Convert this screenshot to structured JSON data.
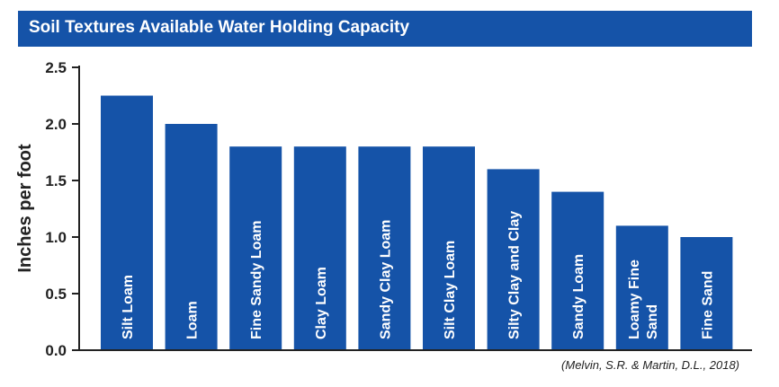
{
  "chart_data": {
    "type": "bar",
    "title": "Soil Textures Available Water Holding Capacity",
    "ylabel": "Inches per foot",
    "xlabel": "",
    "ylim": [
      0,
      2.5
    ],
    "yticks": [
      "0.0",
      "0.5",
      "1.0",
      "1.5",
      "2.0",
      "2.5"
    ],
    "categories": [
      [
        "Silt Loam"
      ],
      [
        "Loam"
      ],
      [
        "Fine Sandy Loam"
      ],
      [
        "Clay Loam"
      ],
      [
        "Sandy Clay Loam"
      ],
      [
        "Silt Clay Loam"
      ],
      [
        "Silty Clay and Clay"
      ],
      [
        "Sandy Loam"
      ],
      [
        "Loamy Fine",
        "Sand"
      ],
      [
        "Fine Sand"
      ]
    ],
    "values": [
      2.25,
      2.0,
      1.8,
      1.8,
      1.8,
      1.8,
      1.6,
      1.4,
      1.1,
      1.0
    ],
    "grid": false,
    "bar_color": "#1553a8",
    "text_color": "#ffffff",
    "source": "(Melvin, S.R. & Martin, D.L., 2018)"
  }
}
